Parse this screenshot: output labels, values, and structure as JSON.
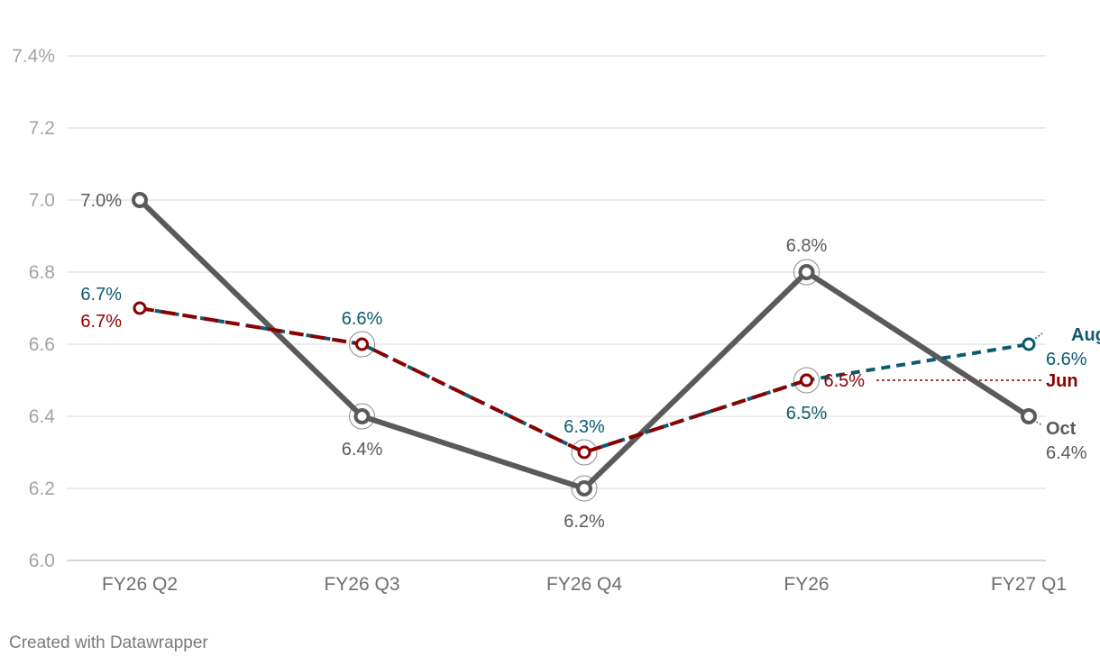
{
  "chart_data": {
    "type": "line",
    "title": "",
    "xlabel": "",
    "ylabel": "",
    "categories": [
      "FY26 Q2",
      "FY26 Q3",
      "FY26 Q4",
      "FY26",
      "FY27 Q1"
    ],
    "ylim": [
      6.0,
      7.4
    ],
    "yticks": [
      {
        "value": 6.0,
        "label": "6.0"
      },
      {
        "value": 6.2,
        "label": "6.2"
      },
      {
        "value": 6.4,
        "label": "6.4"
      },
      {
        "value": 6.6,
        "label": "6.6"
      },
      {
        "value": 6.8,
        "label": "6.8"
      },
      {
        "value": 7.0,
        "label": "7.0"
      },
      {
        "value": 7.2,
        "label": "7.2"
      },
      {
        "value": 7.4,
        "label": "7.4%"
      }
    ],
    "series": [
      {
        "name": "Oct",
        "values": [
          7.0,
          6.4,
          6.2,
          6.8,
          6.4
        ],
        "labels": [
          "7.0%",
          "6.4%",
          "6.2%",
          "6.8%",
          "6.4%"
        ],
        "color": "#5a5a5a",
        "style": "solid"
      },
      {
        "name": "Aug",
        "values": [
          6.7,
          6.6,
          6.3,
          6.5,
          6.6
        ],
        "labels": [
          "6.7%",
          "6.6%",
          "6.3%",
          "6.5%",
          "6.6%"
        ],
        "color": "#0b5a6e",
        "style": "dashed"
      },
      {
        "name": "Jun",
        "values": [
          6.7,
          6.6,
          6.3,
          6.5,
          null
        ],
        "labels": [
          "6.7%",
          "",
          "",
          "6.5%",
          ""
        ],
        "color": "#8b0000",
        "style": "dashed"
      }
    ]
  },
  "footer": {
    "credit": "Created with Datawrapper"
  }
}
